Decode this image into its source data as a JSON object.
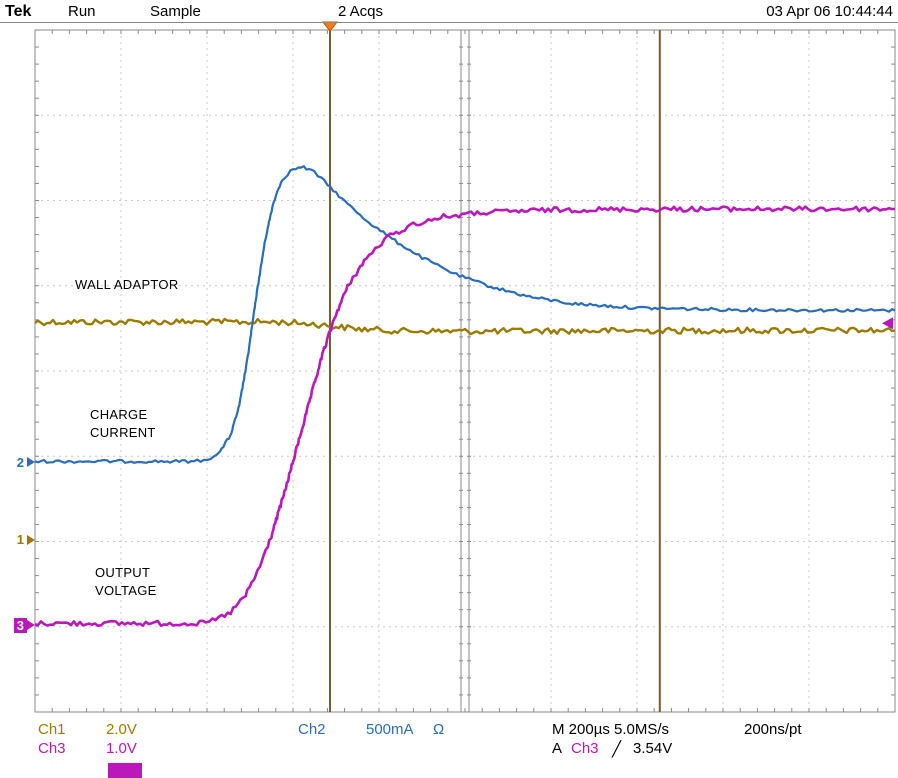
{
  "header": {
    "logo": "Tek",
    "acq_state": "Run",
    "acq_mode": "Sample",
    "acq_count": "2 Acqs",
    "datetime": "03 Apr 06 10:44:44"
  },
  "plot_labels": {
    "wall_adaptor": "WALL ADAPTOR",
    "charge_line1": "CHARGE",
    "charge_line2": "CURRENT",
    "output_line1": "OUTPUT",
    "output_line2": "VOLTAGE"
  },
  "channel_markers": {
    "ch1": "1",
    "ch2": "2",
    "ch3": "3"
  },
  "readouts": {
    "ch1_label": "Ch1",
    "ch1_scale": "2.0V",
    "ch3_label": "Ch3",
    "ch3_scale": "1.0V",
    "ch2_label": "Ch2",
    "ch2_scale": "500mA",
    "ch2_coupling": "Ω",
    "timebase": "M 200µs 5.0MS/s",
    "resolution": "200ns/pt",
    "trig_prefix": "A",
    "trig_source": "Ch3",
    "trig_slope": "╱",
    "trig_level": "3.54V"
  },
  "colors": {
    "ch1": "#9c7a00",
    "ch2": "#2a6cc0",
    "ch3": "#bb18bb",
    "cursor": "#7d5a28",
    "trigger_marker": "#ff7a1e",
    "grid": "#c9c9c9",
    "border": "#8a8a8a"
  },
  "chart_data": {
    "type": "line",
    "title": "",
    "x_unit": "µs",
    "us_per_div": 200,
    "time_span_us": 2000,
    "divisions_x": 10,
    "divisions_y": 8,
    "grid": "dashed",
    "cursors_us": [
      686,
      1453
    ],
    "trigger_position_us": 686,
    "trigger_level": {
      "source": "Ch3",
      "value_v": 3.54
    },
    "series": [
      {
        "name": "Ch1 WALL ADAPTOR",
        "unit": "V",
        "per_div": 2.0,
        "zero_div": 2.02,
        "color": "#9c7a00",
        "noise": 6,
        "width": 2.4,
        "points": [
          [
            0,
            5.11
          ],
          [
            560,
            5.11
          ],
          [
            640,
            5.07
          ],
          [
            700,
            5.0
          ],
          [
            760,
            4.94
          ],
          [
            850,
            4.9
          ],
          [
            1000,
            4.89
          ],
          [
            1200,
            4.9
          ],
          [
            1600,
            4.91
          ],
          [
            2000,
            4.91
          ]
        ]
      },
      {
        "name": "Ch2 CHARGE CURRENT",
        "unit": "mA",
        "per_div": 500,
        "zero_div": 2.93,
        "color": "#2a6cc0",
        "noise": 3,
        "width": 2.2,
        "points": [
          [
            0,
            5
          ],
          [
            370,
            5
          ],
          [
            400,
            15
          ],
          [
            430,
            60
          ],
          [
            455,
            160
          ],
          [
            475,
            330
          ],
          [
            495,
            620
          ],
          [
            515,
            980
          ],
          [
            535,
            1300
          ],
          [
            555,
            1530
          ],
          [
            575,
            1660
          ],
          [
            600,
            1720
          ],
          [
            625,
            1730
          ],
          [
            650,
            1700
          ],
          [
            680,
            1630
          ],
          [
            720,
            1530
          ],
          [
            770,
            1420
          ],
          [
            830,
            1310
          ],
          [
            900,
            1200
          ],
          [
            980,
            1100
          ],
          [
            1060,
            1030
          ],
          [
            1150,
            970
          ],
          [
            1250,
            930
          ],
          [
            1400,
            905
          ],
          [
            1600,
            895
          ],
          [
            1800,
            892
          ],
          [
            2000,
            890
          ]
        ]
      },
      {
        "name": "Ch3 OUTPUT VOLTAGE",
        "unit": "V",
        "per_div": 1.0,
        "zero_div": 1.02,
        "color": "#bb18bb",
        "noise": 5,
        "width": 2.6,
        "points": [
          [
            0,
            0.02
          ],
          [
            390,
            0.02
          ],
          [
            420,
            0.06
          ],
          [
            455,
            0.15
          ],
          [
            490,
            0.35
          ],
          [
            520,
            0.65
          ],
          [
            550,
            1.05
          ],
          [
            580,
            1.55
          ],
          [
            610,
            2.1
          ],
          [
            640,
            2.65
          ],
          [
            670,
            3.2
          ],
          [
            700,
            3.65
          ],
          [
            730,
            4.0
          ],
          [
            770,
            4.3
          ],
          [
            820,
            4.55
          ],
          [
            880,
            4.7
          ],
          [
            950,
            4.79
          ],
          [
            1050,
            4.84
          ],
          [
            1200,
            4.87
          ],
          [
            1500,
            4.88
          ],
          [
            2000,
            4.88
          ]
        ]
      }
    ]
  }
}
